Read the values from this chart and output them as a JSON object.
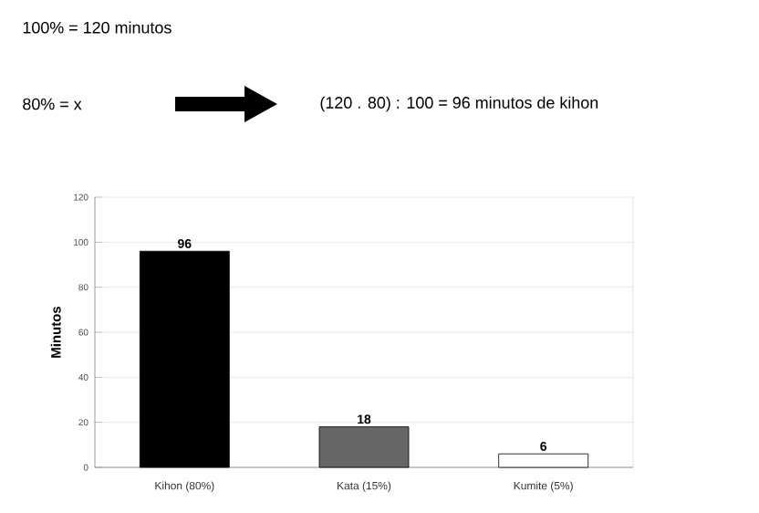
{
  "chart_data": {
    "type": "bar",
    "annotations": [
      "100% = 120 minutos",
      "80% = x",
      "(120 . 80) : 100 = 96 minutos de kihon"
    ],
    "ylabel": "Minutos",
    "categories": [
      "Kihon (80%)",
      "Kata (15%)",
      "Kumite (5%)"
    ],
    "values": [
      96,
      18,
      6
    ],
    "colors": [
      "#000000",
      "#666666",
      "#ffffff"
    ],
    "ylim": [
      0,
      120
    ],
    "yticks": [
      0,
      20,
      40,
      60,
      80,
      100,
      120
    ],
    "grid": "y",
    "data_labels": true
  }
}
